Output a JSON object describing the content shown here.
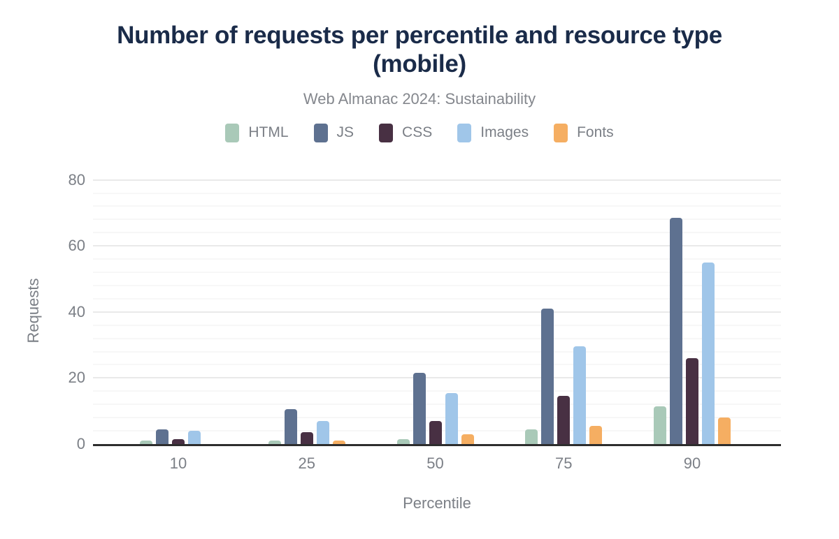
{
  "chart_data": {
    "type": "bar",
    "title": "Number of requests per percentile and resource type (mobile)",
    "subtitle": "Web Almanac 2024: Sustainability",
    "xlabel": "Percentile",
    "ylabel": "Requests",
    "categories": [
      "10",
      "25",
      "50",
      "75",
      "90"
    ],
    "series": [
      {
        "name": "HTML",
        "color": "#a9c9b8",
        "values": [
          1,
          1,
          1.5,
          4.5,
          11.5
        ]
      },
      {
        "name": "JS",
        "color": "#5e7190",
        "values": [
          4.5,
          10.5,
          21.5,
          41,
          68.5
        ]
      },
      {
        "name": "CSS",
        "color": "#483043",
        "values": [
          1.5,
          3.5,
          7,
          14.5,
          26
        ]
      },
      {
        "name": "Images",
        "color": "#a0c6e9",
        "values": [
          4,
          7,
          15.5,
          29.5,
          55
        ]
      },
      {
        "name": "Fonts",
        "color": "#f5ae62",
        "values": [
          0,
          1,
          3,
          5.5,
          8
        ]
      }
    ],
    "ylim": [
      0,
      80
    ],
    "yticks": [
      0,
      20,
      40,
      60,
      80
    ],
    "minor_grid_step": 4,
    "grid": true,
    "legend_position": "top"
  },
  "colors": {
    "title": "#1a2b49",
    "muted_text": "#7b7f86",
    "axis_line": "#2d2d2d",
    "grid_major": "#e9e9e9",
    "grid_minor": "#f7f7f7",
    "background": "#ffffff"
  }
}
